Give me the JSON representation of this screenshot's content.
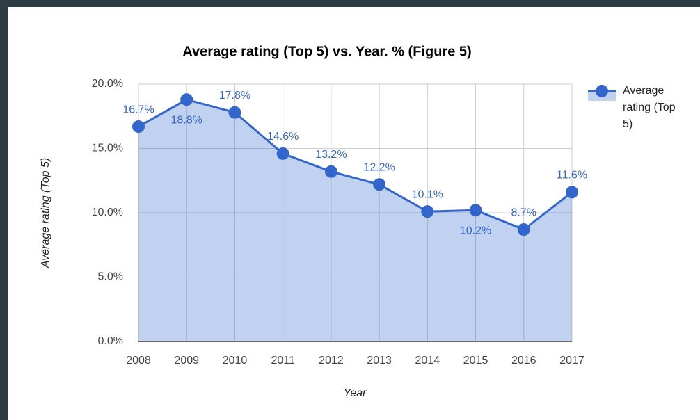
{
  "chart_data": {
    "type": "area",
    "title": "Average rating (Top 5) vs. Year. % (Figure 5)",
    "x_label": "Year",
    "y_label": "Average rating (Top 5)",
    "categories": [
      "2008",
      "2009",
      "2010",
      "2011",
      "2012",
      "2013",
      "2014",
      "2015",
      "2016",
      "2017"
    ],
    "series": [
      {
        "name": "Average rating (Top 5)",
        "color": "#3366cc",
        "values": [
          16.7,
          18.8,
          17.8,
          14.6,
          13.2,
          12.2,
          10.1,
          10.2,
          8.7,
          11.6
        ],
        "value_labels": [
          "16.7%",
          "18.8%",
          "17.8%",
          "14.6%",
          "13.2%",
          "12.2%",
          "10.1%",
          "10.2%",
          "8.7%",
          "11.6%"
        ]
      }
    ],
    "ylim": [
      0,
      20
    ],
    "yticks": [
      {
        "value": 0,
        "label": "0.0%"
      },
      {
        "value": 5,
        "label": "5.0%"
      },
      {
        "value": 10,
        "label": "10.0%"
      },
      {
        "value": 15,
        "label": "15.0%"
      },
      {
        "value": 20,
        "label": "20.0%"
      }
    ],
    "grid": true,
    "legend": "right"
  }
}
